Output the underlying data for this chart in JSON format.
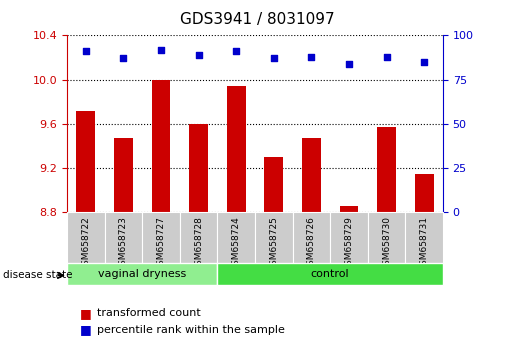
{
  "title": "GDS3941 / 8031097",
  "samples": [
    "GSM658722",
    "GSM658723",
    "GSM658727",
    "GSM658728",
    "GSM658724",
    "GSM658725",
    "GSM658726",
    "GSM658729",
    "GSM658730",
    "GSM658731"
  ],
  "bar_values": [
    9.72,
    9.47,
    10.0,
    9.6,
    9.94,
    9.3,
    9.47,
    8.86,
    9.57,
    9.15
  ],
  "dot_values": [
    91,
    87,
    92,
    89,
    91,
    87,
    88,
    84,
    88,
    85
  ],
  "ylim_left": [
    8.8,
    10.4
  ],
  "ylim_right": [
    0,
    100
  ],
  "yticks_left": [
    8.8,
    9.2,
    9.6,
    10.0,
    10.4
  ],
  "yticks_right": [
    0,
    25,
    50,
    75,
    100
  ],
  "bar_color": "#cc0000",
  "dot_color": "#0000cc",
  "groups": [
    {
      "label": "vaginal dryness",
      "start": 0,
      "end": 4
    },
    {
      "label": "control",
      "start": 4,
      "end": 10
    }
  ],
  "group_colors": [
    "#90ee90",
    "#44dd44"
  ],
  "disease_state_label": "disease state",
  "legend_bar_label": "transformed count",
  "legend_dot_label": "percentile rank within the sample",
  "title_fontsize": 11,
  "axis_label_color_left": "#cc0000",
  "axis_label_color_right": "#0000cc"
}
